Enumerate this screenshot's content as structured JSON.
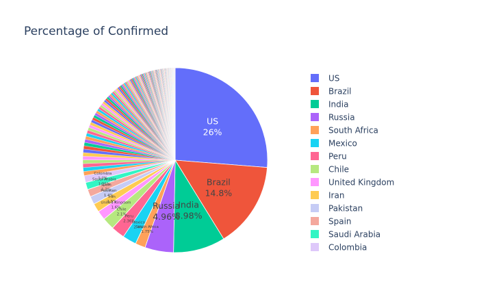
{
  "chart_data": {
    "type": "pie",
    "title": "Percentage of Confirmed",
    "slices": [
      {
        "label": "US",
        "value": 26.0,
        "display": "26%",
        "color": "#636efa"
      },
      {
        "label": "Brazil",
        "value": 14.8,
        "display": "14.8%",
        "color": "#EF553B"
      },
      {
        "label": "India",
        "value": 8.98,
        "display": "8.98%",
        "color": "#00cc96"
      },
      {
        "label": "Russia",
        "value": 4.96,
        "display": "4.96%",
        "color": "#ab63fa"
      },
      {
        "label": "South Africa",
        "value": 1.75,
        "display": "1.75%",
        "color": "#FFA15A"
      },
      {
        "label": "Mexico",
        "value": 2.4,
        "display": "2.4%",
        "color": "#19d3f3"
      },
      {
        "label": "Peru",
        "value": 2.36,
        "display": "2.36%",
        "color": "#FF6692"
      },
      {
        "label": "Chile",
        "value": 2.1,
        "display": "2.1%",
        "color": "#B6E880"
      },
      {
        "label": "United Kingdom",
        "value": 1.6,
        "display": "1.6%",
        "color": "#FF97FF"
      },
      {
        "label": "Iran",
        "value": 1.5,
        "display": "1.5%",
        "color": "#FECB52"
      },
      {
        "label": "Pakistan",
        "value": 1.4,
        "display": "1.4%",
        "color": "#c6ccf5"
      },
      {
        "label": "Spain",
        "value": 1.3,
        "display": "1.3%",
        "color": "#f4a89d"
      },
      {
        "label": "Saudi Arabia",
        "value": 1.25,
        "display": "1.25%",
        "color": "#33f5c4"
      },
      {
        "label": "Colombia",
        "value": 1.2,
        "display": "1.2%",
        "color": "#dec8fa"
      }
    ],
    "other_slices": {
      "count": 150,
      "total_value": 27.4
    },
    "legend_position": "right",
    "text_colors": {
      "on_dark": "#ffffff",
      "on_light": "#444444"
    }
  }
}
